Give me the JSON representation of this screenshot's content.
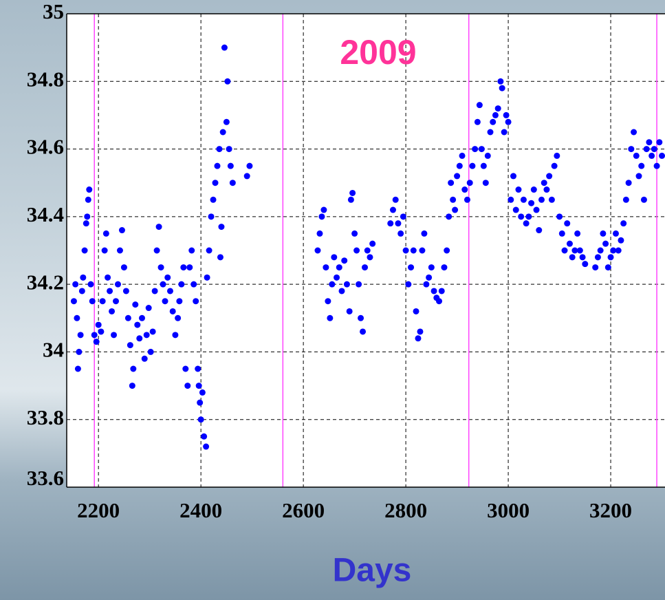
{
  "chart_data": {
    "type": "scatter",
    "title": "2009",
    "x_label": "Days",
    "color": "#0000ff",
    "vlines": [
      2192,
      2560,
      2923,
      3290
    ],
    "vline_color": "#ff44ff",
    "grid": true,
    "xlim": [
      2138,
      3306
    ],
    "ylim": [
      33.6,
      35
    ],
    "xticks": [
      2200,
      2400,
      2600,
      2800,
      3000,
      3200
    ],
    "yticks": [
      33.6,
      33.8,
      34,
      34.2,
      34.4,
      34.6,
      34.8,
      35
    ],
    "x": [
      2152,
      2155,
      2158,
      2160,
      2162,
      2165,
      2168,
      2170,
      2173,
      2176,
      2178,
      2180,
      2182,
      2185,
      2188,
      2192,
      2196,
      2200,
      2205,
      2208,
      2212,
      2215,
      2218,
      2222,
      2226,
      2230,
      2234,
      2238,
      2242,
      2246,
      2250,
      2254,
      2258,
      2262,
      2266,
      2268,
      2272,
      2276,
      2280,
      2285,
      2290,
      2294,
      2298,
      2302,
      2306,
      2310,
      2314,
      2318,
      2322,
      2326,
      2330,
      2335,
      2340,
      2345,
      2350,
      2355,
      2358,
      2362,
      2366,
      2370,
      2374,
      2378,
      2382,
      2386,
      2390,
      2394,
      2396,
      2398,
      2400,
      2403,
      2406,
      2410,
      2412,
      2416,
      2420,
      2424,
      2428,
      2432,
      2436,
      2438,
      2440,
      2443,
      2446,
      2450,
      2452,
      2455,
      2458,
      2462,
      2490,
      2495,
      2628,
      2632,
      2636,
      2640,
      2644,
      2648,
      2652,
      2656,
      2660,
      2665,
      2670,
      2675,
      2680,
      2685,
      2690,
      2693,
      2696,
      2700,
      2704,
      2708,
      2712,
      2716,
      2720,
      2725,
      2730,
      2735,
      2770,
      2775,
      2780,
      2785,
      2790,
      2795,
      2800,
      2805,
      2810,
      2815,
      2820,
      2824,
      2828,
      2832,
      2836,
      2840,
      2845,
      2850,
      2855,
      2860,
      2865,
      2870,
      2875,
      2880,
      2884,
      2888,
      2892,
      2896,
      2900,
      2905,
      2910,
      2915,
      2920,
      2925,
      2930,
      2935,
      2940,
      2944,
      2948,
      2952,
      2956,
      2960,
      2965,
      2970,
      2975,
      2980,
      2985,
      2988,
      2992,
      2996,
      3000,
      3005,
      3010,
      3015,
      3020,
      3025,
      3030,
      3035,
      3040,
      3045,
      3050,
      3055,
      3060,
      3065,
      3070,
      3075,
      3080,
      3085,
      3090,
      3095,
      3100,
      3105,
      3110,
      3115,
      3120,
      3125,
      3130,
      3135,
      3140,
      3145,
      3150,
      3170,
      3175,
      3180,
      3185,
      3190,
      3195,
      3200,
      3205,
      3210,
      3215,
      3220,
      3225,
      3230,
      3235,
      3240,
      3245,
      3250,
      3255,
      3260,
      3265,
      3270,
      3275,
      3280,
      3285,
      3290,
      3295,
      3300
    ],
    "values": [
      34.15,
      34.2,
      34.1,
      33.95,
      34.0,
      34.05,
      34.18,
      34.22,
      34.3,
      34.38,
      34.4,
      34.45,
      34.48,
      34.2,
      34.15,
      34.05,
      34.03,
      34.08,
      34.06,
      34.15,
      34.3,
      34.35,
      34.22,
      34.18,
      34.12,
      34.05,
      34.15,
      34.2,
      34.3,
      34.36,
      34.25,
      34.18,
      34.1,
      34.02,
      33.9,
      33.95,
      34.14,
      34.08,
      34.04,
      34.1,
      33.98,
      34.05,
      34.13,
      34.0,
      34.06,
      34.18,
      34.3,
      34.37,
      34.25,
      34.2,
      34.15,
      34.22,
      34.18,
      34.12,
      34.05,
      34.1,
      34.15,
      34.2,
      34.25,
      33.95,
      33.9,
      34.25,
      34.3,
      34.2,
      34.15,
      33.95,
      33.9,
      33.85,
      33.8,
      33.88,
      33.75,
      33.72,
      34.22,
      34.3,
      34.4,
      34.45,
      34.5,
      34.55,
      34.6,
      34.28,
      34.37,
      34.65,
      34.9,
      34.68,
      34.8,
      34.6,
      34.55,
      34.5,
      34.52,
      34.55,
      34.3,
      34.35,
      34.4,
      34.42,
      34.25,
      34.15,
      34.1,
      34.2,
      34.28,
      34.22,
      34.25,
      34.18,
      34.27,
      34.2,
      34.12,
      34.45,
      34.47,
      34.35,
      34.3,
      34.2,
      34.1,
      34.06,
      34.25,
      34.3,
      34.28,
      34.32,
      34.38,
      34.42,
      34.45,
      34.38,
      34.35,
      34.4,
      34.3,
      34.2,
      34.25,
      34.3,
      34.12,
      34.04,
      34.06,
      34.3,
      34.35,
      34.2,
      34.22,
      34.25,
      34.18,
      34.16,
      34.15,
      34.18,
      34.25,
      34.3,
      34.4,
      34.5,
      34.45,
      34.42,
      34.52,
      34.55,
      34.58,
      34.48,
      34.45,
      34.5,
      34.55,
      34.6,
      34.68,
      34.73,
      34.6,
      34.55,
      34.5,
      34.58,
      34.65,
      34.68,
      34.7,
      34.72,
      34.8,
      34.78,
      34.65,
      34.7,
      34.68,
      34.45,
      34.52,
      34.42,
      34.48,
      34.4,
      34.45,
      34.38,
      34.4,
      34.44,
      34.48,
      34.42,
      34.36,
      34.45,
      34.5,
      34.48,
      34.52,
      34.45,
      34.55,
      34.58,
      34.4,
      34.35,
      34.3,
      34.38,
      34.32,
      34.28,
      34.3,
      34.35,
      34.3,
      34.28,
      34.26,
      34.25,
      34.28,
      34.3,
      34.35,
      34.32,
      34.25,
      34.28,
      34.3,
      34.35,
      34.3,
      34.33,
      34.38,
      34.45,
      34.5,
      34.6,
      34.65,
      34.58,
      34.52,
      34.55,
      34.45,
      34.6,
      34.62,
      34.58,
      34.6,
      34.55,
      34.62,
      34.58
    ]
  }
}
